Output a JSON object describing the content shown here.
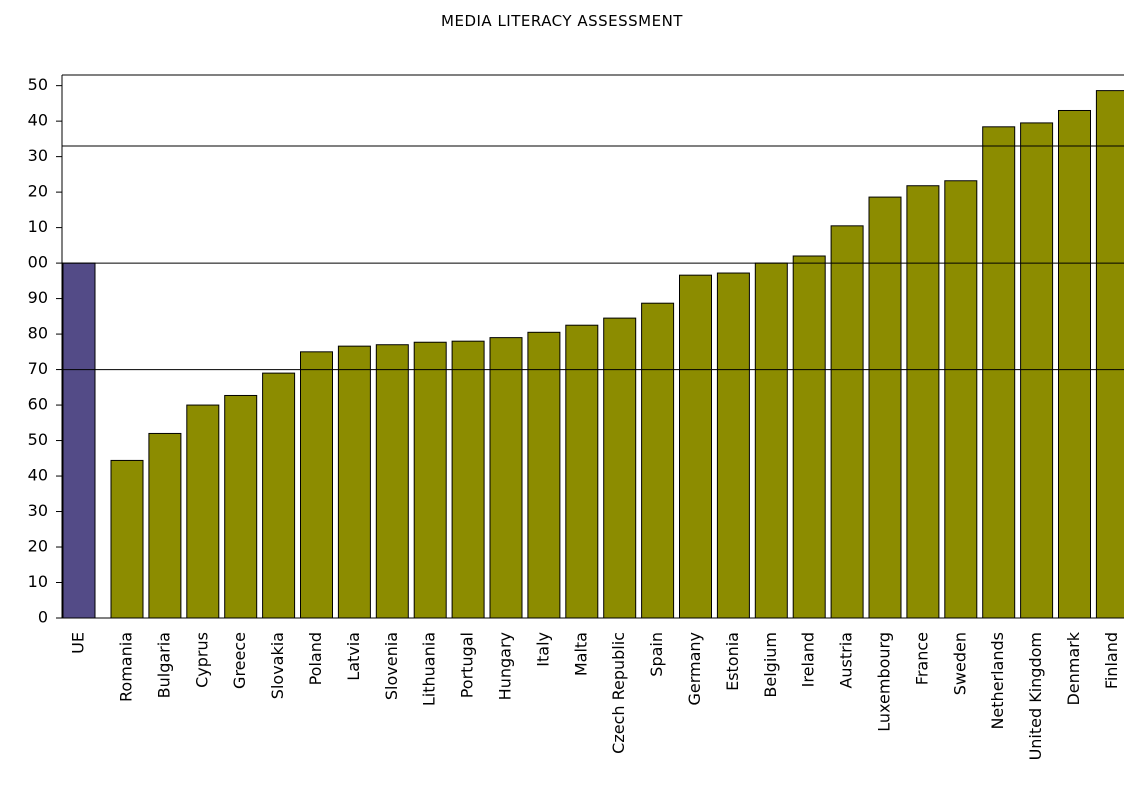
{
  "chart_data": {
    "type": "bar",
    "title": "MEDIA LITERACY ASSESSMENT",
    "categories": [
      "UE",
      "Romania",
      "Bulgaria",
      "Cyprus",
      "Greece",
      "Slovakia",
      "Poland",
      "Latvia",
      "Slovenia",
      "Lithuania",
      "Portugal",
      "Hungary",
      "Italy",
      "Malta",
      "Czech Republic",
      "Spain",
      "Germany",
      "Estonia",
      "Belgium",
      "Ireland",
      "Austria",
      "Luxembourg",
      "France",
      "Sweden",
      "Netherlands",
      "United Kingdom",
      "Denmark",
      "Finland"
    ],
    "values": [
      100,
      44.4,
      52,
      60,
      62.7,
      69,
      75,
      76.6,
      77,
      77.7,
      78,
      79,
      80.5,
      82.5,
      84.5,
      88.7,
      96.6,
      97.2,
      100,
      102,
      110.5,
      118.6,
      121.8,
      123.2,
      138.4,
      139.5,
      143,
      148.6
    ],
    "colors": [
      "#534b87",
      "#8c8c00",
      "#8c8c00",
      "#8c8c00",
      "#8c8c00",
      "#8c8c00",
      "#8c8c00",
      "#8c8c00",
      "#8c8c00",
      "#8c8c00",
      "#8c8c00",
      "#8c8c00",
      "#8c8c00",
      "#8c8c00",
      "#8c8c00",
      "#8c8c00",
      "#8c8c00",
      "#8c8c00",
      "#8c8c00",
      "#8c8c00",
      "#8c8c00",
      "#8c8c00",
      "#8c8c00",
      "#8c8c00",
      "#8c8c00",
      "#8c8c00",
      "#8c8c00",
      "#8c8c00"
    ],
    "ylim": [
      0,
      153
    ],
    "yticks": [
      0,
      10,
      20,
      30,
      40,
      50,
      60,
      70,
      80,
      90,
      {
        "value": 100,
        "label": "00"
      },
      {
        "value": 110,
        "label": "10"
      },
      {
        "value": 120,
        "label": "20"
      },
      {
        "value": 130,
        "label": "30"
      },
      {
        "value": 140,
        "label": "40"
      },
      {
        "value": 150,
        "label": "50"
      }
    ],
    "reference_lines": [
      70,
      100,
      133
    ]
  }
}
